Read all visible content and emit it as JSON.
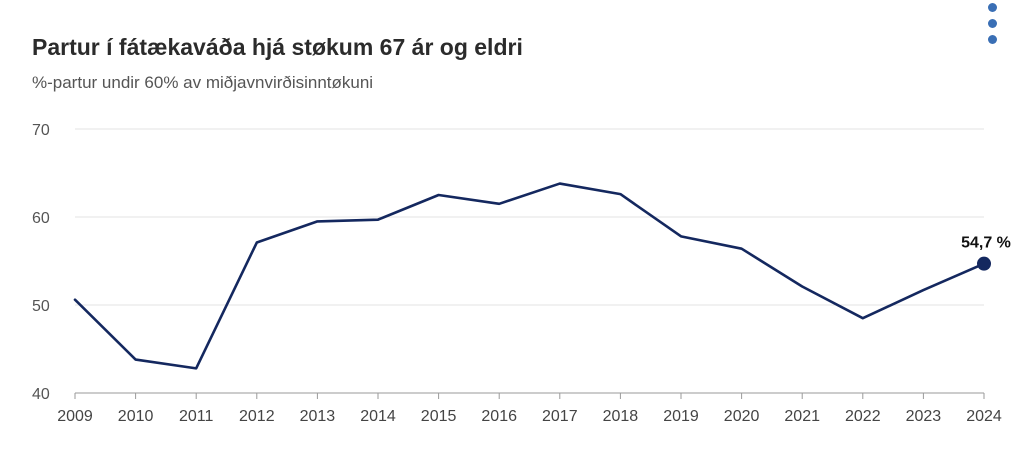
{
  "menu": {
    "icon": "more-vertical-icon",
    "color": "#3a6fb5"
  },
  "chart_data": {
    "type": "line",
    "title": "Partur í fátækaváða hjá støkum 67 ár og eldri",
    "subtitle": "%-partur undir 60% av miðjavnvirðisinntøkuni",
    "xlabel": "",
    "ylabel": "",
    "ylim": [
      40,
      70
    ],
    "yticks": [
      40,
      50,
      60,
      70
    ],
    "grid": true,
    "categories": [
      "2009",
      "2010",
      "2011",
      "2012",
      "2013",
      "2014",
      "2015",
      "2016",
      "2017",
      "2018",
      "2019",
      "2020",
      "2021",
      "2022",
      "2023",
      "2024"
    ],
    "series": [
      {
        "name": "Partur í fátækaváða",
        "color": "#14285f",
        "values": [
          50.6,
          43.8,
          42.8,
          57.1,
          59.5,
          59.7,
          62.5,
          61.5,
          63.8,
          62.6,
          57.8,
          56.4,
          52.1,
          48.5,
          51.7,
          54.7
        ]
      }
    ],
    "last_point_label": "54,7 %"
  }
}
